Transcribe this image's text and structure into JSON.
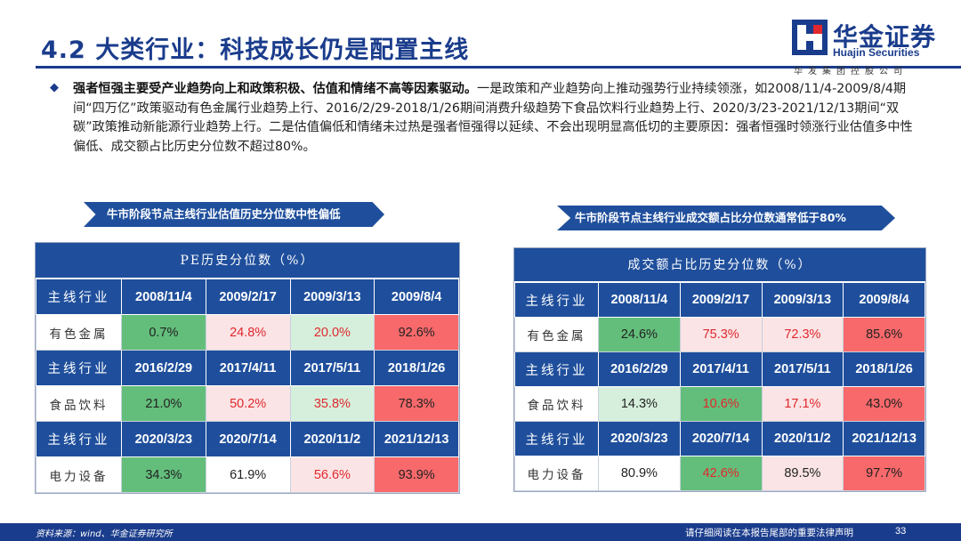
{
  "title": "4.2 大类行业：科技成长仍是配置主线",
  "logo": {
    "cn": "华金证券",
    "en": "Huajin Securities",
    "sub": "华发集团控股公司"
  },
  "paragraph": {
    "bold": "强者恒强主要受产业趋势向上和政策积极、估值和情绪不高等因素驱动。",
    "text": "一是政策和产业趋势向上推动强势行业持续领涨，如2008/11/4-2009/8/4期间“四万亿”政策驱动有色金属行业趋势上行、2016/2/29-2018/1/26期间消费升级趋势下食品饮料行业趋势上行、2020/3/23-2021/12/13期间“双碳”政策推动新能源行业趋势上行。二是估值偏低和情绪未过热是强者恒强得以延续、不会出现明显高低切的主要原因：强者恒强时领涨行业估值多中性偏低、成交额占比历史分位数不超过80%。"
  },
  "banners": {
    "left": "牛市阶段节点主线行业估值历史分位数中性偏低",
    "right": "牛市阶段节点主线行业成交额占比分位数通常低于80%"
  },
  "colors": {
    "accent": "#1a3c8c",
    "header": "#1f4f9c",
    "green": "#63be7b",
    "light_green": "#d6efdc",
    "light_red": "#fbe4e5",
    "red": "#f8696b"
  },
  "pe_table": {
    "caption": "PE历史分位数（%）",
    "row_label": "主线行业",
    "groups": [
      {
        "dates": [
          "2008/11/4",
          "2009/2/17",
          "2009/3/13",
          "2009/8/4"
        ],
        "industry": "有色金属",
        "values": [
          "0.7%",
          "24.8%",
          "20.0%",
          "92.6%"
        ],
        "fills": [
          "green",
          "light_red",
          "light_green",
          "red"
        ],
        "text_colors": [
          "#222222",
          "#e0282e",
          "#e0282e",
          "#222222"
        ]
      },
      {
        "dates": [
          "2016/2/29",
          "2017/4/11",
          "2017/5/11",
          "2018/1/26"
        ],
        "industry": "食品饮料",
        "values": [
          "21.0%",
          "50.2%",
          "35.8%",
          "78.3%"
        ],
        "fills": [
          "green",
          "light_red",
          "light_green",
          "red"
        ],
        "text_colors": [
          "#222222",
          "#e0282e",
          "#e0282e",
          "#222222"
        ]
      },
      {
        "dates": [
          "2020/3/23",
          "2020/7/14",
          "2020/11/2",
          "2021/12/13"
        ],
        "industry": "电力设备",
        "values": [
          "34.3%",
          "61.9%",
          "56.6%",
          "93.9%"
        ],
        "fills": [
          "green",
          "white",
          "light_red",
          "red"
        ],
        "text_colors": [
          "#222222",
          "#222222",
          "#e0282e",
          "#222222"
        ]
      }
    ]
  },
  "turnover_table": {
    "caption": "成交额占比历史分位数（%）",
    "row_label": "主线行业",
    "groups": [
      {
        "dates": [
          "2008/11/4",
          "2009/2/17",
          "2009/3/13",
          "2009/8/4"
        ],
        "industry": "有色金属",
        "values": [
          "24.6%",
          "75.3%",
          "72.3%",
          "85.6%"
        ],
        "fills": [
          "green",
          "light_red",
          "light_red",
          "red"
        ],
        "text_colors": [
          "#222222",
          "#e0282e",
          "#e0282e",
          "#222222"
        ]
      },
      {
        "dates": [
          "2016/2/29",
          "2017/4/11",
          "2017/5/11",
          "2018/1/26"
        ],
        "industry": "食品饮料",
        "values": [
          "14.3%",
          "10.6%",
          "17.1%",
          "43.0%"
        ],
        "fills": [
          "light_green",
          "green",
          "light_red",
          "red"
        ],
        "text_colors": [
          "#222222",
          "#e0282e",
          "#e0282e",
          "#222222"
        ]
      },
      {
        "dates": [
          "2020/3/23",
          "2020/7/14",
          "2020/11/2",
          "2021/12/13"
        ],
        "industry": "电力设备",
        "values": [
          "80.9%",
          "42.6%",
          "89.5%",
          "97.7%"
        ],
        "fills": [
          "white",
          "green",
          "light_red",
          "red"
        ],
        "text_colors": [
          "#222222",
          "#e0282e",
          "#222222",
          "#222222"
        ]
      }
    ]
  },
  "footer": {
    "source": "资料来源：wind、华金证券研究所",
    "note": "请仔细阅读在本报告尾部的重要法律声明",
    "page": "33"
  }
}
